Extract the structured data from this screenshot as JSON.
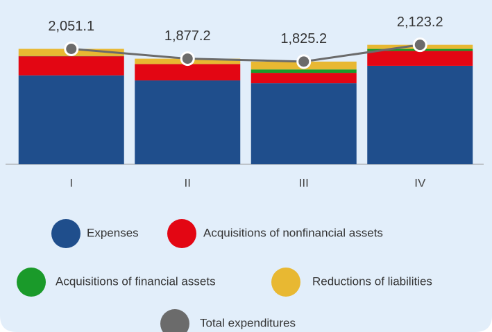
{
  "chart_data": {
    "type": "bar",
    "categories": [
      "I",
      "II",
      "III",
      "IV"
    ],
    "ylim": [
      0,
      2550
    ],
    "series": [
      {
        "name": "Expenses",
        "color": "#1f4e8c",
        "values": [
          1580,
          1490,
          1440,
          1750
        ]
      },
      {
        "name": "Acquisitions of nonfinancial assets",
        "color": "#e30613",
        "values": [
          340,
          290,
          185,
          265
        ]
      },
      {
        "name": "Acquisitions of financial assets",
        "color": "#1a9a2a",
        "values": [
          5,
          2,
          60,
          35
        ]
      },
      {
        "name": "Reductions of liabilities",
        "color": "#e8b832",
        "values": [
          126,
          95,
          140,
          73
        ]
      },
      {
        "name": "Total expenditures",
        "color": "#6b6b6b",
        "type": "line",
        "values": [
          2051.1,
          1877.2,
          1825.2,
          2123.2
        ],
        "value_labels": [
          "2,051.1",
          "1,877.2",
          "1,825.2",
          "2,123.2"
        ]
      }
    ]
  }
}
